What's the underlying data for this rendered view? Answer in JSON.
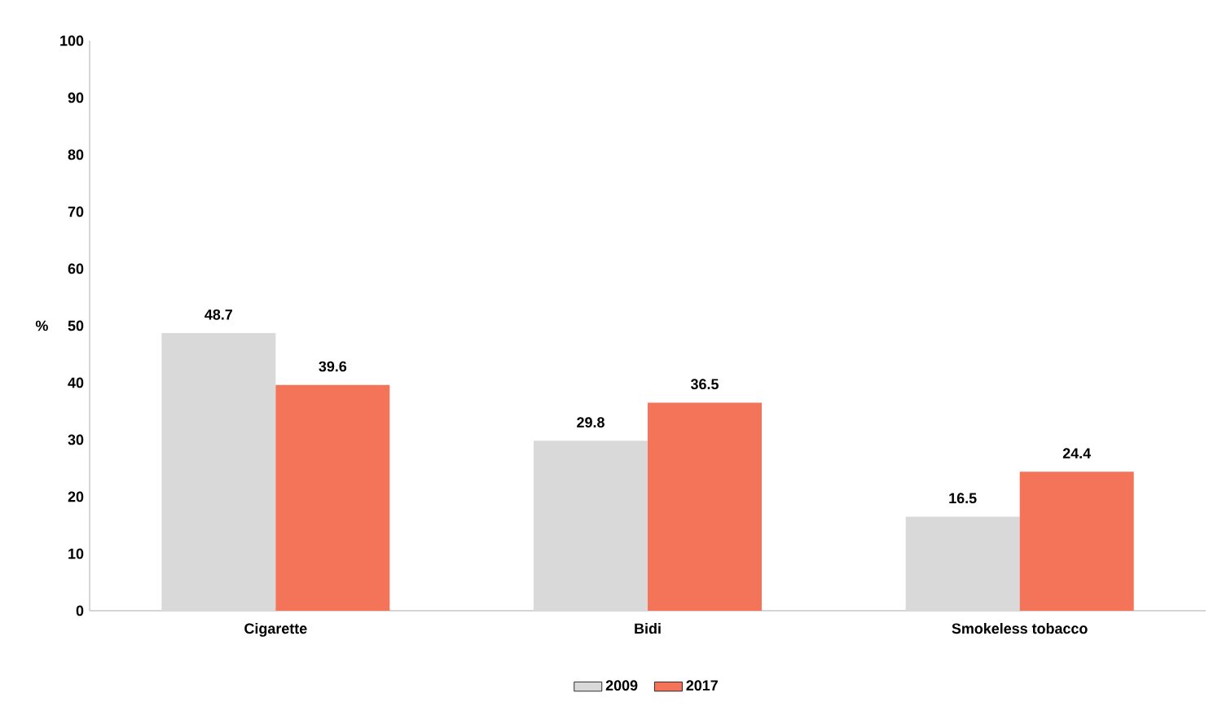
{
  "chart_data": {
    "type": "bar",
    "ylabel": "%",
    "categories": [
      "Cigarette",
      "Bidi",
      "Smokeless tobacco"
    ],
    "series": [
      {
        "name": "2009",
        "color": "#d9d9d9",
        "values": [
          48.7,
          29.8,
          16.5
        ]
      },
      {
        "name": "2017",
        "color": "#f4745a",
        "values": [
          39.6,
          36.5,
          24.4
        ]
      }
    ],
    "ylim": [
      0,
      100
    ],
    "yticks": [
      0,
      10,
      20,
      30,
      40,
      50,
      60,
      70,
      80,
      90,
      100
    ],
    "data_labels": true,
    "legend": "bottom",
    "grid": false
  }
}
